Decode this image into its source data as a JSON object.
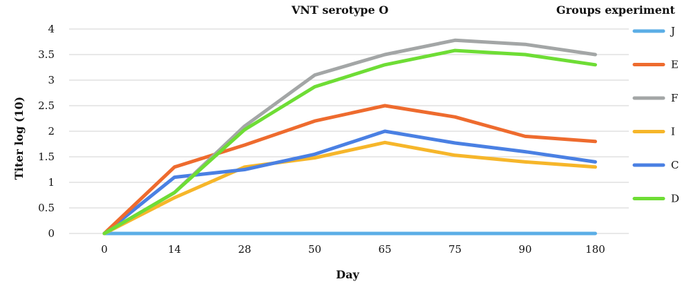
{
  "chart_data": {
    "type": "line",
    "title": "VNT serotype O",
    "xlabel": "Day",
    "ylabel": "Titer log (10)",
    "categories": [
      "0",
      "14",
      "28",
      "50",
      "65",
      "75",
      "90",
      "180"
    ],
    "ylim": [
      0,
      4
    ],
    "yticks": [
      "0",
      "0.5",
      "1",
      "1.5",
      "2",
      "2.5",
      "3",
      "3.5",
      "4"
    ],
    "grid": true,
    "legend": {
      "title": "Groups experiment",
      "position": "right"
    },
    "series": [
      {
        "name": "J",
        "color": "#5BAEE6",
        "values": [
          0,
          0,
          0,
          0,
          0,
          0,
          0,
          0
        ]
      },
      {
        "name": "E",
        "color": "#EE6B2E",
        "values": [
          0,
          1.3,
          1.73,
          2.2,
          2.5,
          2.28,
          1.9,
          1.8
        ]
      },
      {
        "name": "F",
        "color": "#A3A6A6",
        "values": [
          0,
          0.8,
          2.1,
          3.1,
          3.5,
          3.78,
          3.7,
          3.5
        ]
      },
      {
        "name": "I",
        "color": "#F6B62A",
        "values": [
          0,
          0.7,
          1.3,
          1.48,
          1.78,
          1.53,
          1.4,
          1.3
        ]
      },
      {
        "name": "C",
        "color": "#4A80E3",
        "values": [
          0,
          1.1,
          1.25,
          1.55,
          2.0,
          1.77,
          1.6,
          1.4
        ]
      },
      {
        "name": "D",
        "color": "#6EDD35",
        "values": [
          0,
          0.8,
          2.03,
          2.87,
          3.3,
          3.58,
          3.5,
          3.3
        ]
      }
    ]
  }
}
